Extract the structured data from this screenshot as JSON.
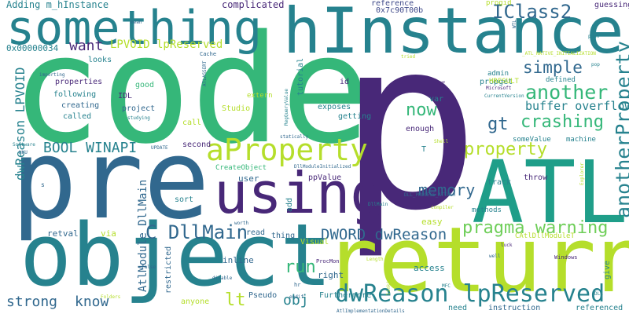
{
  "palette": {
    "dark_purple": "#482878",
    "blue": "#31688e",
    "teal": "#26828e",
    "green": "#35b779",
    "light_green": "#6ece58",
    "yellow_green": "#b5de2b",
    "yellow": "#fde725",
    "green_2": "#3fbc73",
    "navy": "#3e4989",
    "cyan": "#1f9e89"
  },
  "words": [
    {
      "text": "code",
      "color": "#35b779"
    },
    {
      "text": "p",
      "color": "#482878"
    },
    {
      "text": "pre",
      "color": "#31688e"
    },
    {
      "text": "object",
      "color": "#26828e"
    },
    {
      "text": "return",
      "color": "#b5de2b"
    },
    {
      "text": "hInstance",
      "color": "#26828e"
    },
    {
      "text": "something",
      "color": "#26828e"
    },
    {
      "text": "using",
      "color": "#482878"
    },
    {
      "text": "ATL",
      "color": "#1f9e89"
    },
    {
      "text": "aProperty",
      "color": "#b5de2b"
    },
    {
      "text": "dwReason lpReserved",
      "color": "#26828e"
    },
    {
      "text": "pragma warning",
      "color": "#6ece58"
    },
    {
      "text": "anotherProperty",
      "color": "#26828e"
    },
    {
      "text": "crashing",
      "color": "#35b779"
    },
    {
      "text": "another",
      "color": "#35b779"
    },
    {
      "text": "IClass2",
      "color": "#31688e"
    },
    {
      "text": "C DllMain",
      "color": "#31688e"
    },
    {
      "text": "DWORD dwReason",
      "color": "#31688e"
    },
    {
      "text": "memory",
      "color": "#31688e"
    },
    {
      "text": "property",
      "color": "#b5de2b"
    },
    {
      "text": "simple",
      "color": "#31688e"
    },
    {
      "text": "BOOL WINAPI",
      "color": "#26828e"
    },
    {
      "text": "gt",
      "color": "#31688e"
    },
    {
      "text": "now",
      "color": "#35b779"
    },
    {
      "text": "run",
      "color": "#35b779"
    },
    {
      "text": "lt",
      "color": "#b5de2b"
    },
    {
      "text": "strong",
      "color": "#31688e"
    },
    {
      "text": "know",
      "color": "#31688e"
    },
    {
      "text": "obj",
      "color": "#26828e"
    },
    {
      "text": "want",
      "color": "#482878"
    },
    {
      "text": "LPVOID lpReserved",
      "color": "#b5de2b"
    },
    {
      "text": "buffer overflow",
      "color": "#26828e"
    },
    {
      "text": "dwReason LPVOID",
      "color": "#26828e"
    },
    {
      "text": "AtlModule DllMain",
      "color": "#31688e"
    },
    {
      "text": "complicated",
      "color": "#482878"
    },
    {
      "text": "Adding m_hInstance",
      "color": "#26828e"
    },
    {
      "text": "reference",
      "color": "#3e4989"
    },
    {
      "text": "0x7c90T00b",
      "color": "#3e4989"
    },
    {
      "text": "progid",
      "color": "#b5de2b"
    },
    {
      "text": "guessing",
      "color": "#482878"
    },
    {
      "text": "0x00000034",
      "color": "#26828e"
    },
    {
      "text": "looks",
      "color": "#26828e"
    },
    {
      "text": "properties",
      "color": "#482878"
    },
    {
      "text": "following",
      "color": "#26828e"
    },
    {
      "text": "creating",
      "color": "#31688e"
    },
    {
      "text": "called",
      "color": "#26828e"
    },
    {
      "text": "IDL",
      "color": "#482878"
    },
    {
      "text": "good",
      "color": "#35b779"
    },
    {
      "text": "project",
      "color": "#31688e"
    },
    {
      "text": "Studio",
      "color": "#b5de2b"
    },
    {
      "text": "call",
      "color": "#b5de2b"
    },
    {
      "text": "tutorial",
      "color": "#26828e"
    },
    {
      "text": "extern",
      "color": "#b5de2b"
    },
    {
      "text": "id",
      "color": "#482878"
    },
    {
      "text": "exposes",
      "color": "#26828e"
    },
    {
      "text": "getting",
      "color": "#26828e"
    },
    {
      "text": "var",
      "color": "#26828e"
    },
    {
      "text": "enough",
      "color": "#482878"
    },
    {
      "text": "propget",
      "color": "#26828e"
    },
    {
      "text": "admin",
      "color": "#26828e"
    },
    {
      "text": "HRESULT",
      "color": "#b5de2b"
    },
    {
      "text": "defined",
      "color": "#26828e"
    },
    {
      "text": "someValue",
      "color": "#26828e"
    },
    {
      "text": "machine",
      "color": "#26828e"
    },
    {
      "text": "ppValue",
      "color": "#482878"
    },
    {
      "text": "track",
      "color": "#26828e"
    },
    {
      "text": "throw",
      "color": "#482878"
    },
    {
      "text": "CreateObject",
      "color": "#35b779"
    },
    {
      "text": "user",
      "color": "#31688e"
    },
    {
      "text": "second",
      "color": "#482878"
    },
    {
      "text": "sort",
      "color": "#26828e"
    },
    {
      "text": "add",
      "color": "#26828e"
    },
    {
      "text": "Visual",
      "color": "#b5de2b"
    },
    {
      "text": "easy",
      "color": "#b5de2b"
    },
    {
      "text": "methods",
      "color": "#26828e"
    },
    {
      "text": "CAtlDllModuleT",
      "color": "#b5de2b"
    },
    {
      "text": "retval",
      "color": "#31688e"
    },
    {
      "text": "via",
      "color": "#b5de2b"
    },
    {
      "text": "thing",
      "color": "#31688e"
    },
    {
      "text": "read",
      "color": "#31688e"
    },
    {
      "text": "inline",
      "color": "#31688e"
    },
    {
      "text": "right",
      "color": "#31688e"
    },
    {
      "text": "access",
      "color": "#26828e"
    },
    {
      "text": "give",
      "color": "#26828e"
    },
    {
      "text": "restricted",
      "color": "#31688e"
    },
    {
      "text": "anyone",
      "color": "#b5de2b"
    },
    {
      "text": "Pseudo",
      "color": "#31688e"
    },
    {
      "text": "Furthermore",
      "color": "#26828e"
    },
    {
      "text": "need",
      "color": "#26828e"
    },
    {
      "text": "instruction",
      "color": "#31688e"
    },
    {
      "text": "referenced",
      "color": "#26828e"
    },
    {
      "text": "Windows",
      "color": "#482878"
    },
    {
      "text": "DLL_PROCESS_ATTACH",
      "color": "#31688e"
    },
    {
      "text": "DllModuleInitialized",
      "color": "#31688e"
    },
    {
      "text": "RegQueryValue",
      "color": "#26828e"
    },
    {
      "text": "statically",
      "color": "#31688e"
    },
    {
      "text": "ATLASSERT",
      "color": "#31688e"
    },
    {
      "text": "Cache",
      "color": "#31688e"
    },
    {
      "text": "importing",
      "color": "#31688e"
    },
    {
      "text": "studying",
      "color": "#26828e"
    },
    {
      "text": "Software",
      "color": "#26828e"
    },
    {
      "text": "HKU",
      "color": "#31688e"
    },
    {
      "text": "UPDATE",
      "color": "#31688e"
    },
    {
      "text": "Shell",
      "color": "#b5de2b"
    },
    {
      "text": "TRUE",
      "color": "#482878"
    },
    {
      "text": "Microsoft",
      "color": "#482878"
    },
    {
      "text": "CurrentVersion",
      "color": "#26828e"
    },
    {
      "text": "_ATL_NATIVE_INITIALIZATION",
      "color": "#b5de2b"
    },
    {
      "text": "tried",
      "color": "#b5de2b"
    },
    {
      "text": "push",
      "color": "#26828e"
    },
    {
      "text": "pop",
      "color": "#26828e"
    },
    {
      "text": "WTL",
      "color": "#31688e"
    },
    {
      "text": "mean",
      "color": "#31688e"
    },
    {
      "text": "T",
      "color": "#26828e"
    },
    {
      "text": "s",
      "color": "#31688e"
    },
    {
      "text": "ProcMon",
      "color": "#482878"
    },
    {
      "text": "Length",
      "color": "#b5de2b"
    },
    {
      "text": "linking",
      "color": "#b5de2b"
    },
    {
      "text": "hr",
      "color": "#31688e"
    },
    {
      "text": "MFC",
      "color": "#26828e"
    },
    {
      "text": "endif",
      "color": "#31688e"
    },
    {
      "text": "AtlImplementationDetails",
      "color": "#31688e"
    },
    {
      "text": "DLL",
      "color": "#26828e"
    },
    {
      "text": "luck",
      "color": "#482878"
    },
    {
      "text": "well",
      "color": "#31688e"
    },
    {
      "text": "false",
      "color": "#31688e"
    },
    {
      "text": "worth",
      "color": "#31688e"
    },
    {
      "text": "disable",
      "color": "#31688e"
    },
    {
      "text": "Folders",
      "color": "#b5de2b"
    },
    {
      "text": "compiler",
      "color": "#b5de2b"
    },
    {
      "text": "Explorer",
      "color": "#b5de2b"
    },
    {
      "text": "DllMain",
      "color": "#26828e"
    }
  ]
}
